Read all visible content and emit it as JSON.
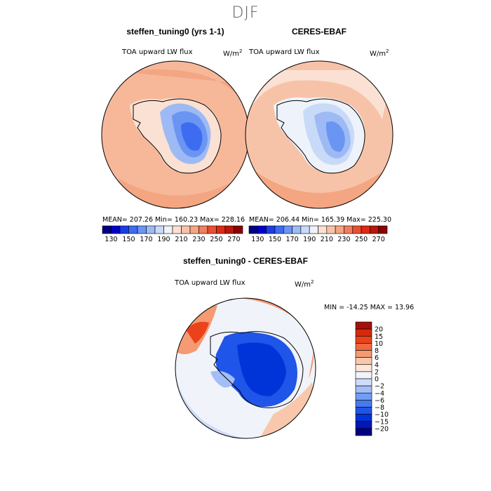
{
  "figure": {
    "season": "DJF",
    "panel_left_title": "steffen_tuning0 (yrs 1-1)",
    "panel_right_title": "CERES-EBAF",
    "panel_diff_title": "steffen_tuning0 - CERES-EBAF",
    "field_label": "TOA upward LW flux",
    "units": "W/m",
    "units_exp": "2"
  },
  "stats": {
    "left": "MEAN= 207.26   Min= 160.23   Max= 228.16",
    "right": "MEAN= 206.44   Min= 165.39   Max= 225.30",
    "diff": "MIN = -14.25 MAX =  13.96"
  },
  "colors": {
    "abs_levels": [
      "#00007f",
      "#0000c8",
      "#1a3ee6",
      "#3d6cf0",
      "#6a95f3",
      "#9dbaf5",
      "#c8daf8",
      "#eef3fb",
      "#fbe1d3",
      "#f7c3a8",
      "#f4a582",
      "#f17e5c",
      "#ec4f30",
      "#dd2a14",
      "#b8170a",
      "#8b0000"
    ],
    "diff_levels": [
      "#000080",
      "#0018b4",
      "#0034d8",
      "#1f55e8",
      "#4879ef",
      "#739cf3",
      "#a3bef6",
      "#cfdcf8",
      "#f0f3fa",
      "#fbe6d8",
      "#f9c8ac",
      "#f59a72",
      "#f1693e",
      "#eb421c",
      "#d62a0e",
      "#a41108"
    ]
  },
  "chart_data": [
    {
      "type": "heatmap",
      "title": "steffen_tuning0 (yrs 1-1)",
      "field": "TOA upward LW flux",
      "units": "W/m2",
      "projection": "south polar stereographic",
      "mean": 207.26,
      "min": 160.23,
      "max": 228.16,
      "colorbar_ticks": [
        "130",
        "150",
        "170",
        "190",
        "210",
        "230",
        "250",
        "270"
      ]
    },
    {
      "type": "heatmap",
      "title": "CERES-EBAF",
      "field": "TOA upward LW flux",
      "units": "W/m2",
      "projection": "south polar stereographic",
      "mean": 206.44,
      "min": 165.39,
      "max": 225.3,
      "colorbar_ticks": [
        "130",
        "150",
        "170",
        "190",
        "210",
        "230",
        "250",
        "270"
      ]
    },
    {
      "type": "heatmap",
      "title": "steffen_tuning0 - CERES-EBAF",
      "field": "TOA upward LW flux",
      "units": "W/m2",
      "projection": "south polar stereographic",
      "min": -14.25,
      "max": 13.96,
      "colorbar_ticks": [
        "20",
        "15",
        "10",
        "8",
        "6",
        "4",
        "2",
        "0",
        "−2",
        "−4",
        "−6",
        "−8",
        "−10",
        "−15",
        "−20"
      ]
    }
  ]
}
